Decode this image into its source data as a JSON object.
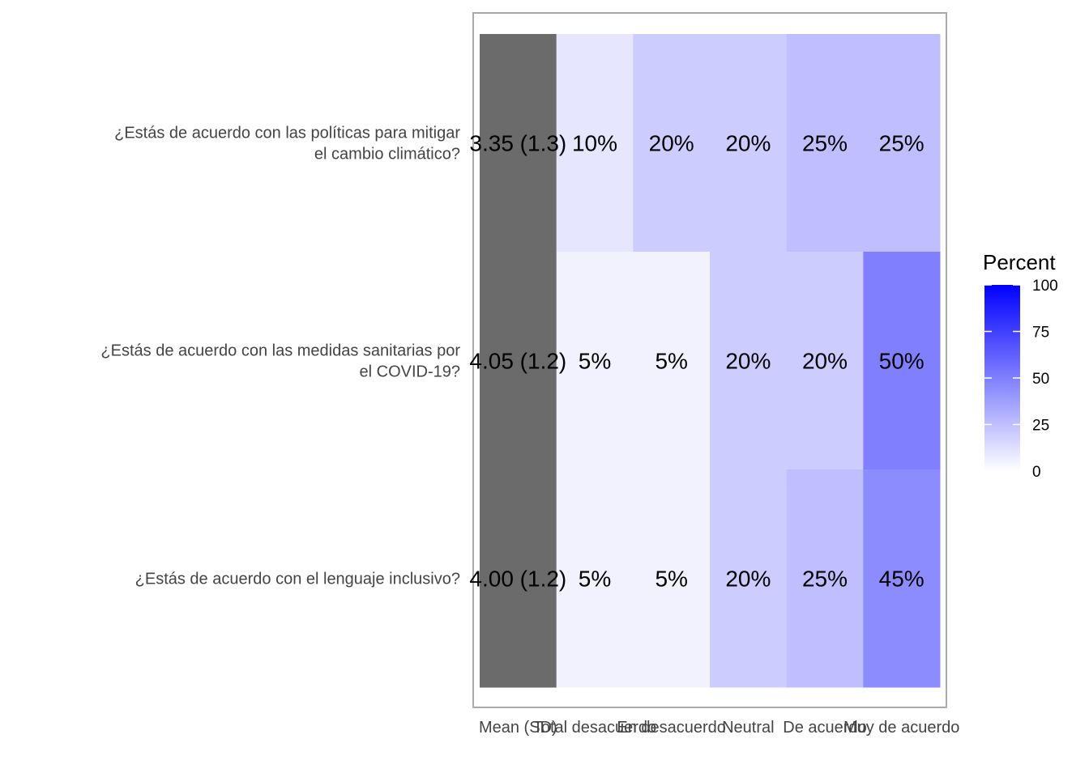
{
  "chart_data": {
    "type": "heatmap",
    "categories": [
      "Mean (SD)",
      "Total desacuerdo",
      "En desacuerdo",
      "Neutral",
      "De acuerdo",
      "Muy de acuerdo"
    ],
    "rows": [
      {
        "label_lines": [
          "¿Estás de acuerdo con las políticas para mitigar",
          "el cambio climático?"
        ],
        "summary": "3.35 (1.3)",
        "values": [
          10,
          20,
          20,
          25,
          25
        ],
        "value_labels": [
          "10%",
          "20%",
          "20%",
          "25%",
          "25%"
        ]
      },
      {
        "label_lines": [
          "¿Estás de acuerdo con las medidas sanitarias por",
          "el COVID-19?"
        ],
        "summary": "4.05 (1.2)",
        "values": [
          5,
          5,
          20,
          20,
          50
        ],
        "value_labels": [
          "5%",
          "5%",
          "20%",
          "20%",
          "50%"
        ]
      },
      {
        "label_lines": [
          "¿Estás de acuerdo con el lenguaje inclusivo?"
        ],
        "summary": "4.00 (1.2)",
        "values": [
          5,
          5,
          20,
          25,
          45
        ],
        "value_labels": [
          "5%",
          "5%",
          "20%",
          "25%",
          "45%"
        ]
      }
    ],
    "legend": {
      "title": "Percent",
      "ticks": [
        100,
        75,
        50,
        25,
        0
      ],
      "range": [
        0,
        100
      ],
      "low_color": "#ffffff",
      "high_color": "#0000ff",
      "placement": "right"
    },
    "summary_color": "#6b6b6b",
    "border_color": "#aaaaaa"
  }
}
